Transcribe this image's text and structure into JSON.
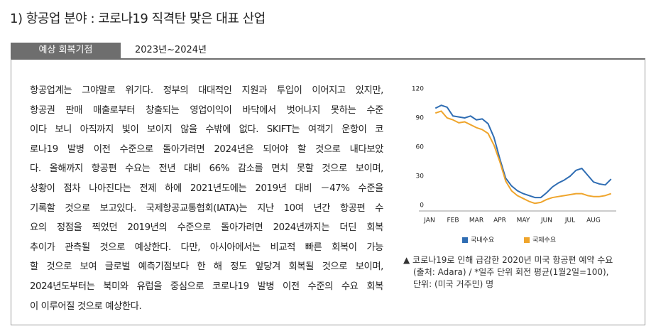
{
  "header": {
    "title": "1) 항공업 분야 : 코로나19 직격탄 맞은 대표 산업"
  },
  "tab": {
    "label": "예상 회복기점",
    "period": "2023년~2024년"
  },
  "body": {
    "lines": [
      "항공업계는 그야말로 위기다. 정부의 대대적인 지원과 투입이 이어지고 있지만,",
      "항공권 판매 매출로부터 창출되는 영업이익이 바닥에서 벗어나지 못하는 수준",
      "이다 보니 아직까지 빛이 보이지 않을 수밖에 없다. SKIFT는 여객기 운항이 코",
      "로나19 발병 이전 수준으로 돌아가려면 2024년은 되어야 할 것으로 내다보았",
      "다. 올해까지 항공편 수요는 전년 대비 66% 감소를 면치 못할 것으로 보이며,",
      "상황이 점차 나아진다는 전제 하에 2021년도에는 2019년 대비 －47% 수준을",
      "기록할 것으로 보고있다. 국제항공교통협회(IATA)는 지난 10여 년간 항공편 수",
      "요의 정점을 찍었던 2019년의 수준으로 돌아가려면 2024년까지는 더딘 회복",
      "추이가 관측될 것으로 예상한다. 다만, 아시아에서는 비교적 빠른 회복이 가능",
      "할 것으로 보여 글로벌 예측기점보다 한 해 정도 앞당겨 회복될 것으로 보이며,",
      "2024년도부터는 북미와 유럽을 중심으로 코로나19 발병 이전 수준의 수요 회복",
      "이 이루어질 것으로 예상한다."
    ]
  },
  "caption": {
    "lines": [
      "▲ 코로나19로 인해 급감한 2020년 미국 항공편 예약 수요",
      "(출처: Adara)  / *일주 단위 회전 평균(1월2일=100),",
      "단위: (미국 거주민) 명"
    ]
  },
  "chart_data": {
    "type": "line",
    "x": [
      0.25,
      0.5,
      0.75,
      1,
      1.25,
      1.5,
      1.75,
      2,
      2.25,
      2.5,
      2.75,
      3,
      3.25,
      3.5,
      3.75,
      4,
      4.25,
      4.5,
      4.75,
      5,
      5.25,
      5.5,
      5.75,
      6,
      6.25,
      6.5,
      6.75,
      7,
      7.25,
      7.5,
      7.75
    ],
    "xlim": [
      0,
      8
    ],
    "xticks": [
      {
        "value": 0,
        "label": "JAN"
      },
      {
        "value": 1,
        "label": "FEB"
      },
      {
        "value": 2,
        "label": "MAR"
      },
      {
        "value": 3,
        "label": "APR"
      },
      {
        "value": 4,
        "label": "MAY"
      },
      {
        "value": 5,
        "label": "JUN"
      },
      {
        "value": 6,
        "label": "JUL"
      },
      {
        "value": 7,
        "label": "AUG"
      }
    ],
    "ylim": [
      0,
      120
    ],
    "yticks": [
      0,
      30,
      60,
      90,
      120
    ],
    "series": [
      {
        "name": "국내수요",
        "color": "#2f6db3",
        "values": [
          100,
          103,
          101,
          92,
          91,
          90,
          92,
          88,
          89,
          84,
          70,
          48,
          28,
          20,
          15,
          12,
          10,
          8,
          8,
          13,
          19,
          23,
          26,
          30,
          36,
          38,
          31,
          24,
          22,
          21,
          27
        ]
      },
      {
        "name": "국제수요",
        "color": "#efa52c",
        "values": [
          95,
          97,
          90,
          88,
          85,
          86,
          83,
          80,
          78,
          74,
          62,
          45,
          25,
          15,
          10,
          7,
          4,
          2,
          3,
          6,
          8,
          9,
          10,
          11,
          12,
          12,
          10,
          9,
          9,
          10,
          12
        ]
      }
    ]
  }
}
